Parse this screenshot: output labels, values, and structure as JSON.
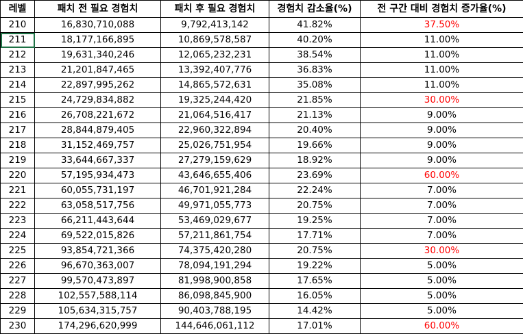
{
  "headers": {
    "level": "레벨",
    "before": "패치 전 필요 경험치",
    "after": "패치 후 필요 경험치",
    "decrease": "경험치 감소율(%)",
    "increase": "전 구간 대비 경험치 증가율(%)"
  },
  "colors": {
    "highlight": "#ff0000",
    "normal": "#000000",
    "border": "#000000"
  },
  "rows": [
    {
      "level": "210",
      "before": "16,830,710,088",
      "after": "9,792,413,142",
      "decrease": "41.82%",
      "increase": "37.50%",
      "highlight": true
    },
    {
      "level": "211",
      "before": "18,177,166,895",
      "after": "10,869,578,587",
      "decrease": "40.20%",
      "increase": "11.00%",
      "highlight": false
    },
    {
      "level": "212",
      "before": "19,631,340,246",
      "after": "12,065,232,231",
      "decrease": "38.54%",
      "increase": "11.00%",
      "highlight": false
    },
    {
      "level": "213",
      "before": "21,201,847,465",
      "after": "13,392,407,776",
      "decrease": "36.83%",
      "increase": "11.00%",
      "highlight": false
    },
    {
      "level": "214",
      "before": "22,897,995,262",
      "after": "14,865,572,631",
      "decrease": "35.08%",
      "increase": "11.00%",
      "highlight": false
    },
    {
      "level": "215",
      "before": "24,729,834,882",
      "after": "19,325,244,420",
      "decrease": "21.85%",
      "increase": "30.00%",
      "highlight": true
    },
    {
      "level": "216",
      "before": "26,708,221,672",
      "after": "21,064,516,417",
      "decrease": "21.13%",
      "increase": "9.00%",
      "highlight": false
    },
    {
      "level": "217",
      "before": "28,844,879,405",
      "after": "22,960,322,894",
      "decrease": "20.40%",
      "increase": "9.00%",
      "highlight": false
    },
    {
      "level": "218",
      "before": "31,152,469,757",
      "after": "25,026,751,954",
      "decrease": "19.66%",
      "increase": "9.00%",
      "highlight": false
    },
    {
      "level": "219",
      "before": "33,644,667,337",
      "after": "27,279,159,629",
      "decrease": "18.92%",
      "increase": "9.00%",
      "highlight": false
    },
    {
      "level": "220",
      "before": "57,195,934,473",
      "after": "43,646,655,406",
      "decrease": "23.69%",
      "increase": "60.00%",
      "highlight": true
    },
    {
      "level": "221",
      "before": "60,055,731,197",
      "after": "46,701,921,284",
      "decrease": "22.24%",
      "increase": "7.00%",
      "highlight": false
    },
    {
      "level": "222",
      "before": "63,058,517,756",
      "after": "49,971,055,773",
      "decrease": "20.75%",
      "increase": "7.00%",
      "highlight": false
    },
    {
      "level": "223",
      "before": "66,211,443,644",
      "after": "53,469,029,677",
      "decrease": "19.25%",
      "increase": "7.00%",
      "highlight": false
    },
    {
      "level": "224",
      "before": "69,522,015,826",
      "after": "57,211,861,754",
      "decrease": "17.71%",
      "increase": "7.00%",
      "highlight": false
    },
    {
      "level": "225",
      "before": "93,854,721,366",
      "after": "74,375,420,280",
      "decrease": "20.75%",
      "increase": "30.00%",
      "highlight": true
    },
    {
      "level": "226",
      "before": "96,670,363,007",
      "after": "78,094,191,294",
      "decrease": "19.22%",
      "increase": "5.00%",
      "highlight": false
    },
    {
      "level": "227",
      "before": "99,570,473,897",
      "after": "81,998,900,858",
      "decrease": "17.65%",
      "increase": "5.00%",
      "highlight": false
    },
    {
      "level": "228",
      "before": "102,557,588,114",
      "after": "86,098,845,900",
      "decrease": "16.05%",
      "increase": "5.00%",
      "highlight": false
    },
    {
      "level": "229",
      "before": "105,634,315,757",
      "after": "90,403,788,195",
      "decrease": "14.42%",
      "increase": "5.00%",
      "highlight": false
    },
    {
      "level": "230",
      "before": "174,296,620,999",
      "after": "144,646,061,112",
      "decrease": "17.01%",
      "increase": "60.00%",
      "highlight": true
    }
  ]
}
